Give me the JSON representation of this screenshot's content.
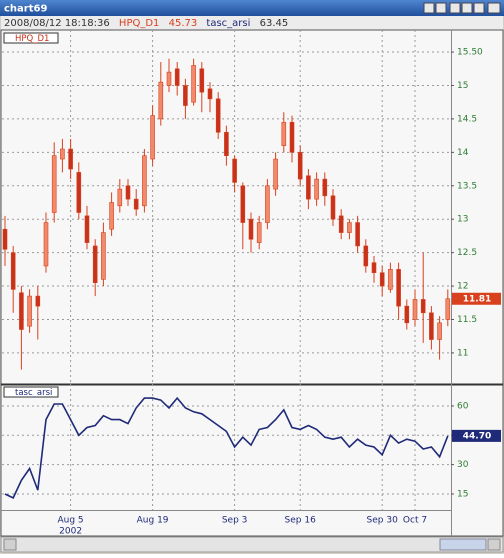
{
  "window": {
    "title": "chart69"
  },
  "header": {
    "timestamp": "2008/08/12 18:18:36",
    "symbol": "HPQ_D1",
    "price": 45.73,
    "indicator": "tasc_arsi",
    "indicator_value": 63.45
  },
  "chart_data": [
    {
      "type": "candlestick",
      "label": "HPQ_D1",
      "color_up": "#f08a6a",
      "color_down": "#c8321a",
      "stroke": "#d8401e",
      "open": [
        12.85,
        12.5,
        11.9,
        11.4,
        11.85,
        12.3,
        13.1,
        13.9,
        14.05,
        13.7,
        13.05,
        12.6,
        12.1,
        12.85,
        13.2,
        13.5,
        13.3,
        13.2,
        13.9,
        14.5,
        15.0,
        15.25,
        15.0,
        14.75,
        15.25,
        14.95,
        14.8,
        14.3,
        13.9,
        13.5,
        13.0,
        12.65,
        12.95,
        13.45,
        14.1,
        14.45,
        14.0,
        13.65,
        13.3,
        13.6,
        13.35,
        13.05,
        12.8,
        12.95,
        12.6,
        12.35,
        12.2,
        11.95,
        12.25,
        11.7,
        11.5,
        11.8,
        11.6,
        11.2,
        11.5
      ],
      "high": [
        13.05,
        12.6,
        12.0,
        11.95,
        12.0,
        13.1,
        14.15,
        14.2,
        14.2,
        13.85,
        13.2,
        12.7,
        12.95,
        13.4,
        13.6,
        13.6,
        13.45,
        14.05,
        14.7,
        15.35,
        15.4,
        15.35,
        15.1,
        15.4,
        15.35,
        15.05,
        14.9,
        14.4,
        13.95,
        13.55,
        13.1,
        13.05,
        13.6,
        14.0,
        14.6,
        14.55,
        14.1,
        13.75,
        13.7,
        13.7,
        13.45,
        13.15,
        13.0,
        13.05,
        12.7,
        12.45,
        12.3,
        12.35,
        12.35,
        11.8,
        11.95,
        12.5,
        11.7,
        11.55,
        11.95
      ],
      "low": [
        12.3,
        11.6,
        10.75,
        11.3,
        11.2,
        12.2,
        12.95,
        13.7,
        13.6,
        13.0,
        12.55,
        11.85,
        12.0,
        12.75,
        13.1,
        13.2,
        13.05,
        13.1,
        13.8,
        14.4,
        14.9,
        14.85,
        14.5,
        14.7,
        14.6,
        14.6,
        14.2,
        13.8,
        13.4,
        12.55,
        12.5,
        12.55,
        12.85,
        13.35,
        14.0,
        13.85,
        13.5,
        13.15,
        13.2,
        13.2,
        12.9,
        12.7,
        12.7,
        12.5,
        12.2,
        12.05,
        11.85,
        11.9,
        11.5,
        11.35,
        11.4,
        11.15,
        11.05,
        10.9,
        11.4
      ],
      "close": [
        12.55,
        11.95,
        11.35,
        11.85,
        11.7,
        12.95,
        13.95,
        14.05,
        13.75,
        13.1,
        12.65,
        12.05,
        12.8,
        13.25,
        13.45,
        13.3,
        13.15,
        13.95,
        14.55,
        15.05,
        15.2,
        15.0,
        14.7,
        15.3,
        14.9,
        14.8,
        14.3,
        13.95,
        13.55,
        12.95,
        12.7,
        12.95,
        13.5,
        13.9,
        14.45,
        14.0,
        13.6,
        13.3,
        13.6,
        13.35,
        13.0,
        12.8,
        12.95,
        12.6,
        12.3,
        12.2,
        12.0,
        12.25,
        11.7,
        11.45,
        11.8,
        11.6,
        11.2,
        11.45,
        11.81
      ],
      "ylim": [
        10.55,
        15.8
      ],
      "yticks": [
        11,
        11.5,
        12,
        12.5,
        13,
        13.5,
        14,
        14.5,
        15,
        {
          "value": 15.5,
          "label": "15.50"
        }
      ],
      "current": 11.81,
      "current_color": "#d8401e",
      "grid": true
    },
    {
      "type": "line",
      "label": "tasc_arsi",
      "color": "#1f2a78",
      "categories": [
        null,
        null,
        null,
        null,
        null,
        null,
        null,
        null,
        "Aug 5",
        null,
        null,
        null,
        null,
        null,
        null,
        null,
        null,
        null,
        "Aug 19",
        null,
        null,
        null,
        null,
        null,
        null,
        null,
        null,
        null,
        "Sep 3",
        null,
        null,
        null,
        null,
        null,
        null,
        null,
        "Sep 16",
        null,
        null,
        null,
        null,
        null,
        null,
        null,
        null,
        null,
        "Sep 30",
        null,
        null,
        null,
        "Oct 7",
        null,
        null,
        null,
        null
      ],
      "year_label": "2002",
      "values": [
        15,
        13,
        22,
        28,
        17,
        53,
        61,
        61,
        53,
        45,
        49,
        50,
        55,
        53,
        53,
        51,
        59,
        64,
        64,
        63,
        59,
        64,
        59,
        57,
        56,
        53,
        50,
        47,
        39,
        44,
        40,
        48,
        49,
        53,
        58,
        49,
        48,
        50,
        48,
        44,
        43,
        44,
        39,
        43,
        40,
        39,
        35,
        45,
        41,
        43,
        42,
        38,
        39,
        34,
        44.7
      ],
      "ylim": [
        6.8,
        70.2
      ],
      "yticks": [
        15,
        30,
        45,
        60
      ],
      "current": {
        "value": 44.7,
        "label": "44.70"
      },
      "current_color": "#1f2a78",
      "grid": true
    }
  ]
}
